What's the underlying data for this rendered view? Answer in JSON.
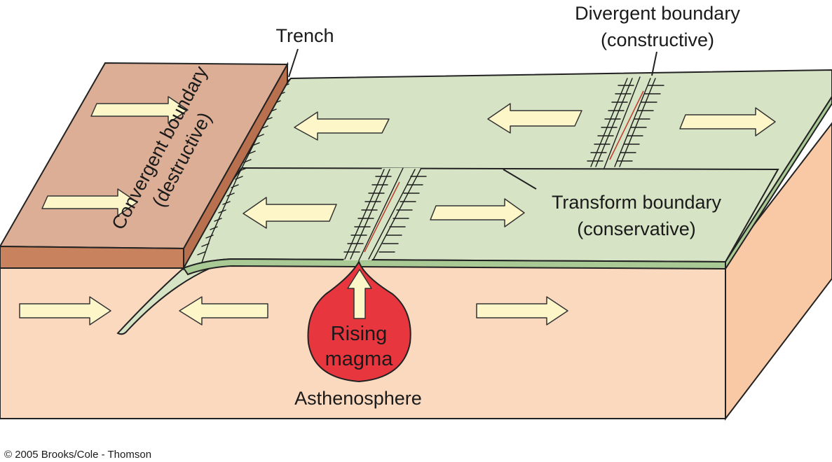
{
  "labels": {
    "trench": "Trench",
    "divergent_line1": "Divergent boundary",
    "divergent_line2": "(constructive)",
    "convergent_line1": "Convergent boundary",
    "convergent_line2": "(destructive)",
    "transform_line1": "Transform boundary",
    "transform_line2": "(conservative)",
    "magma_line1": "Rising",
    "magma_line2": "magma",
    "asthenosphere": "Asthenosphere",
    "copyright": "© 2005 Brooks/Cole - Thomson"
  },
  "colors": {
    "continental_plate": "#dcae96",
    "continental_side": "#c9825e",
    "oceanic_plate": "#d6e3c4",
    "oceanic_side": "#a9c995",
    "asthenosphere": "#fbd9bf",
    "magma": "#e8363f",
    "arrow_fill": "#fdf6c8"
  }
}
